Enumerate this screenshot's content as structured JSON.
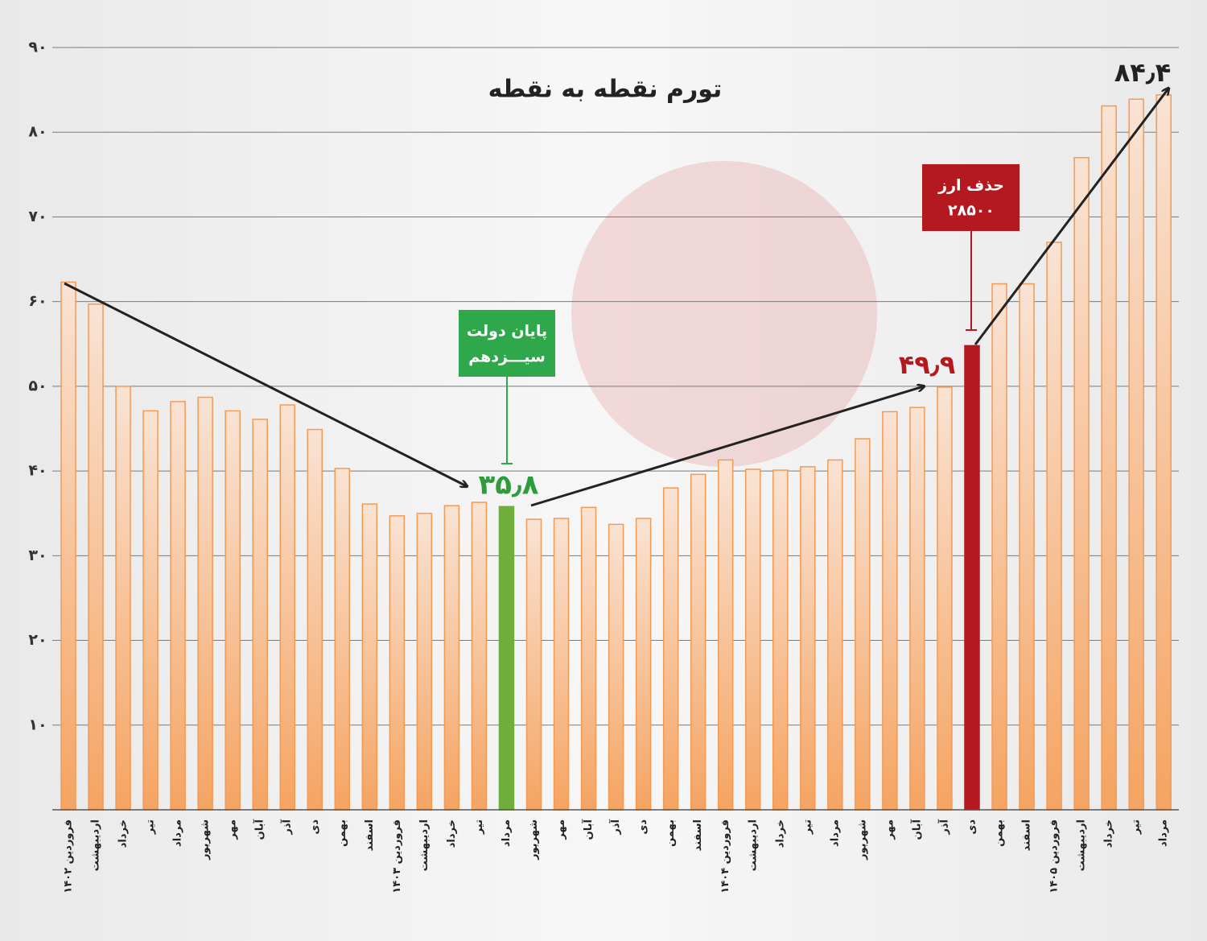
{
  "chart_data": {
    "type": "bar",
    "title": "تورم نقطه به نقطه",
    "categories": [
      "فروردین ۱۴۰۲",
      "اردیبهشت",
      "خرداد",
      "تیر",
      "مرداد",
      "شهریور",
      "مهر",
      "آبان",
      "آذر",
      "دی",
      "بهمن",
      "اسفند",
      "فروردین ۱۴۰۳",
      "اردیبهشت",
      "خرداد",
      "تیر",
      "مرداد",
      "شهریور",
      "مهر",
      "آبان",
      "آذر",
      "دی",
      "بهمن",
      "اسفند",
      "فروردین ۱۴۰۴",
      "اردیبهشت",
      "خرداد",
      "تیر",
      "مرداد",
      "شهریور",
      "مهر",
      "آبان",
      "آذر",
      "دی",
      "بهمن",
      "اسفند",
      "فروردین ۱۴۰۵",
      "اردیبهشت",
      "خرداد",
      "تیر",
      "مرداد"
    ],
    "values": [
      62.3,
      59.7,
      50.0,
      47.1,
      48.2,
      48.7,
      47.1,
      46.1,
      47.8,
      44.9,
      40.3,
      36.1,
      34.7,
      35.0,
      35.9,
      36.3,
      35.8,
      34.3,
      34.4,
      35.7,
      33.7,
      34.4,
      38.0,
      39.6,
      41.3,
      40.2,
      40.1,
      40.5,
      41.3,
      43.8,
      47.0,
      47.5,
      49.9,
      54.8,
      62.1,
      62.1,
      67.0,
      77.0,
      83.1,
      83.9,
      84.4
    ],
    "value_labels": [
      null,
      null,
      null,
      null,
      null,
      null,
      null,
      null,
      null,
      null,
      null,
      null,
      null,
      null,
      null,
      null,
      "۳۵٫۸",
      null,
      null,
      null,
      null,
      null,
      null,
      null,
      null,
      null,
      null,
      null,
      null,
      null,
      null,
      null,
      "۴۹٫۹",
      null,
      null,
      null,
      null,
      null,
      null,
      null,
      "۸۴٫۴"
    ],
    "color": "#f39a55",
    "highlight_colors": [
      null,
      null,
      null,
      null,
      null,
      null,
      null,
      null,
      null,
      null,
      null,
      null,
      null,
      null,
      null,
      null,
      "#6fae3c",
      null,
      null,
      null,
      null,
      null,
      null,
      null,
      null,
      null,
      null,
      null,
      null,
      null,
      null,
      null,
      null,
      "#b3191f",
      null,
      null,
      null,
      null,
      null,
      null,
      null
    ],
    "value_label_colors": [
      null,
      null,
      null,
      null,
      null,
      null,
      null,
      null,
      null,
      null,
      null,
      null,
      null,
      null,
      null,
      null,
      "#2e9c3d",
      null,
      null,
      null,
      null,
      null,
      null,
      null,
      null,
      null,
      null,
      null,
      null,
      null,
      null,
      null,
      "#b3191f",
      null,
      null,
      null,
      null,
      null,
      null,
      null,
      "#222222"
    ],
    "ylim": [
      0,
      90
    ],
    "yticks": [
      {
        "value": 10,
        "label": "۱۰"
      },
      {
        "value": 20,
        "label": "۲۰"
      },
      {
        "value": 30,
        "label": "۳۰"
      },
      {
        "value": 40,
        "label": "۴۰"
      },
      {
        "value": 50,
        "label": "۵۰"
      },
      {
        "value": 60,
        "label": "۶۰"
      },
      {
        "value": 70,
        "label": "۷۰"
      },
      {
        "value": 80,
        "label": "۸۰"
      },
      {
        "value": 90,
        "label": "۹۰"
      }
    ],
    "grid": true,
    "annotations": [
      {
        "lines": [
          "پایان دولت",
          "سیـــزدهم"
        ]
      },
      {
        "lines": [
          "حذف ارز",
          "۲۸۵۰۰"
        ]
      }
    ]
  }
}
